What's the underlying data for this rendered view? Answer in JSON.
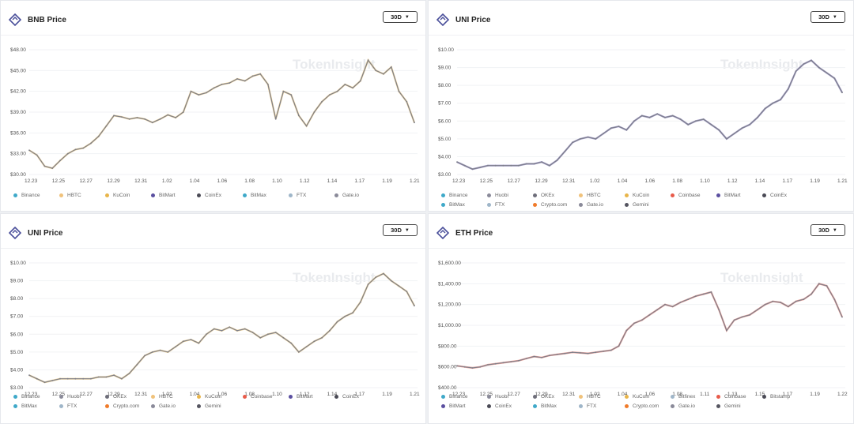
{
  "watermark": "TokenInsight",
  "panels": [
    {
      "title": "BNB Price",
      "period_label": "30D",
      "legend": [
        {
          "label": "Binance",
          "color": "#3fa9c9"
        },
        {
          "label": "HBTC",
          "color": "#f0c27b"
        },
        {
          "label": "KuCoin",
          "color": "#e8b54a"
        },
        {
          "label": "BitMart",
          "color": "#5b4fa0"
        },
        {
          "label": "CoinEx",
          "color": "#4a4a55"
        },
        {
          "label": "BitMax",
          "color": "#3fa9c9"
        },
        {
          "label": "FTX",
          "color": "#9fb6c9"
        },
        {
          "label": "Gate.io",
          "color": "#8a8a99"
        }
      ],
      "chart_data": {
        "type": "line",
        "x_ticks": [
          "12.23",
          "12.25",
          "12.27",
          "12.29",
          "12.31",
          "1.02",
          "1.04",
          "1.06",
          "1.08",
          "1.10",
          "1.12",
          "1.14",
          "1.17",
          "1.19",
          "1.21"
        ],
        "y_ticks": [
          "$30.00",
          "$33.00",
          "$36.00",
          "$39.00",
          "$42.00",
          "$45.00",
          "$48.00"
        ],
        "ylim": [
          30,
          48
        ],
        "series_color": "#7d7f8a",
        "accent_color": "#e8b54a",
        "values": [
          33.5,
          32.8,
          31.2,
          30.9,
          32.0,
          33.0,
          33.6,
          33.8,
          34.5,
          35.5,
          37.0,
          38.5,
          38.3,
          38.0,
          38.2,
          38.0,
          37.5,
          38.0,
          38.6,
          38.2,
          39.0,
          42.0,
          41.5,
          41.8,
          42.5,
          43.0,
          43.2,
          43.8,
          43.5,
          44.2,
          44.5,
          43.0,
          38.0,
          42.0,
          41.5,
          38.5,
          37.0,
          39.0,
          40.5,
          41.5,
          42.0,
          43.0,
          42.5,
          43.5,
          46.5,
          45.0,
          44.5,
          45.5,
          42.0,
          40.5,
          37.5
        ]
      }
    },
    {
      "title": "UNI Price",
      "period_label": "30D",
      "legend": [
        {
          "label": "Binance",
          "color": "#3fa9c9"
        },
        {
          "label": "Huobi",
          "color": "#8a8a99"
        },
        {
          "label": "OKEx",
          "color": "#6e6e7a"
        },
        {
          "label": "HBTC",
          "color": "#f0c27b"
        },
        {
          "label": "KuCoin",
          "color": "#e8b54a"
        },
        {
          "label": "Coinbase",
          "color": "#e85b4a"
        },
        {
          "label": "BitMart",
          "color": "#5b4fa0"
        },
        {
          "label": "CoinEx",
          "color": "#4a4a55"
        },
        {
          "label": "BitMax",
          "color": "#3fa9c9"
        },
        {
          "label": "FTX",
          "color": "#9fb6c9"
        },
        {
          "label": "Crypto.com",
          "color": "#f07b2a"
        },
        {
          "label": "Gate.io",
          "color": "#8a8a99"
        },
        {
          "label": "Gemini",
          "color": "#555560"
        }
      ],
      "chart_data": {
        "type": "line",
        "x_ticks": [
          "12.23",
          "12.25",
          "12.27",
          "12.29",
          "12.31",
          "1.02",
          "1.04",
          "1.06",
          "1.08",
          "1.10",
          "1.12",
          "1.14",
          "1.17",
          "1.19",
          "1.21"
        ],
        "y_ticks": [
          "$3.00",
          "$4.00",
          "$5.00",
          "$6.00",
          "$7.00",
          "$8.00",
          "$9.00",
          "$10.00"
        ],
        "ylim": [
          3,
          10
        ],
        "series_color": "#7d7f8a",
        "accent_color": "#5b4fa0",
        "values": [
          3.7,
          3.5,
          3.3,
          3.4,
          3.5,
          3.5,
          3.5,
          3.5,
          3.5,
          3.6,
          3.6,
          3.7,
          3.5,
          3.8,
          4.3,
          4.8,
          5.0,
          5.1,
          5.0,
          5.3,
          5.6,
          5.7,
          5.5,
          6.0,
          6.3,
          6.2,
          6.4,
          6.2,
          6.3,
          6.1,
          5.8,
          6.0,
          6.1,
          5.8,
          5.5,
          5.0,
          5.3,
          5.6,
          5.8,
          6.2,
          6.7,
          7.0,
          7.2,
          7.8,
          8.8,
          9.2,
          9.4,
          9.0,
          8.7,
          8.4,
          7.6
        ]
      }
    },
    {
      "title": "UNI Price",
      "period_label": "30D",
      "legend": [
        {
          "label": "Binance",
          "color": "#3fa9c9"
        },
        {
          "label": "Huobi",
          "color": "#8a8a99"
        },
        {
          "label": "OKEx",
          "color": "#6e6e7a"
        },
        {
          "label": "HBTC",
          "color": "#f0c27b"
        },
        {
          "label": "KuCoin",
          "color": "#e8b54a"
        },
        {
          "label": "Coinbase",
          "color": "#e85b4a"
        },
        {
          "label": "BitMart",
          "color": "#5b4fa0"
        },
        {
          "label": "CoinEx",
          "color": "#4a4a55"
        },
        {
          "label": "BitMax",
          "color": "#3fa9c9"
        },
        {
          "label": "FTX",
          "color": "#9fb6c9"
        },
        {
          "label": "Crypto.com",
          "color": "#f07b2a"
        },
        {
          "label": "Gate.io",
          "color": "#8a8a99"
        },
        {
          "label": "Gemini",
          "color": "#555560"
        }
      ],
      "chart_data": {
        "type": "line",
        "x_ticks": [
          "12.23",
          "12.25",
          "12.27",
          "12.29",
          "12.31",
          "1.02",
          "1.04",
          "1.06",
          "1.08",
          "1.10",
          "1.12",
          "1.14",
          "1.17",
          "1.19",
          "1.21"
        ],
        "y_ticks": [
          "$3.00",
          "$4.00",
          "$5.00",
          "$6.00",
          "$7.00",
          "$8.00",
          "$9.00",
          "$10.00"
        ],
        "ylim": [
          3,
          10
        ],
        "series_color": "#7d7f8a",
        "accent_color": "#e8b54a",
        "values": [
          3.7,
          3.5,
          3.3,
          3.4,
          3.5,
          3.5,
          3.5,
          3.5,
          3.5,
          3.6,
          3.6,
          3.7,
          3.5,
          3.8,
          4.3,
          4.8,
          5.0,
          5.1,
          5.0,
          5.3,
          5.6,
          5.7,
          5.5,
          6.0,
          6.3,
          6.2,
          6.4,
          6.2,
          6.3,
          6.1,
          5.8,
          6.0,
          6.1,
          5.8,
          5.5,
          5.0,
          5.3,
          5.6,
          5.8,
          6.2,
          6.7,
          7.0,
          7.2,
          7.8,
          8.8,
          9.2,
          9.4,
          9.0,
          8.7,
          8.4,
          7.6
        ]
      }
    },
    {
      "title": "ETH Price",
      "period_label": "30D",
      "legend": [
        {
          "label": "Binance",
          "color": "#3fa9c9"
        },
        {
          "label": "Huobi",
          "color": "#8a8a99"
        },
        {
          "label": "OKEx",
          "color": "#6e6e7a"
        },
        {
          "label": "HBTC",
          "color": "#f0c27b"
        },
        {
          "label": "KuCoin",
          "color": "#e8b54a"
        },
        {
          "label": "Bitfinex",
          "color": "#9fb6c9"
        },
        {
          "label": "Coinbase",
          "color": "#e85b4a"
        },
        {
          "label": "Bitstamp",
          "color": "#4a4a55"
        },
        {
          "label": "BitMart",
          "color": "#5b4fa0"
        },
        {
          "label": "CoinEx",
          "color": "#4a4a55"
        },
        {
          "label": "BitMax",
          "color": "#3fa9c9"
        },
        {
          "label": "FTX",
          "color": "#9fb6c9"
        },
        {
          "label": "Crypto.com",
          "color": "#f07b2a"
        },
        {
          "label": "Gate.io",
          "color": "#8a8a99"
        },
        {
          "label": "Gemini",
          "color": "#555560"
        }
      ],
      "chart_data": {
        "type": "line",
        "x_ticks": [
          "12.23",
          "12.25",
          "12.27",
          "12.29",
          "12.31",
          "1.02",
          "1.04",
          "1.06",
          "1.08",
          "1.11",
          "1.13",
          "1.15",
          "1.17",
          "1.19",
          "1.22"
        ],
        "y_ticks": [
          "$400.00",
          "$600.00",
          "$800.00",
          "$1,000.00",
          "$1,200.00",
          "$1,400.00",
          "$1,600.00"
        ],
        "ylim": [
          400,
          1600
        ],
        "series_color": "#7d7f8a",
        "accent_color": "#e85b4a",
        "values": [
          610,
          600,
          590,
          600,
          620,
          630,
          640,
          650,
          660,
          680,
          700,
          690,
          710,
          720,
          730,
          740,
          735,
          730,
          740,
          750,
          760,
          800,
          950,
          1020,
          1050,
          1100,
          1150,
          1200,
          1180,
          1220,
          1250,
          1280,
          1300,
          1320,
          1150,
          950,
          1050,
          1080,
          1100,
          1150,
          1200,
          1230,
          1220,
          1180,
          1230,
          1250,
          1300,
          1400,
          1380,
          1250,
          1080
        ]
      }
    }
  ]
}
